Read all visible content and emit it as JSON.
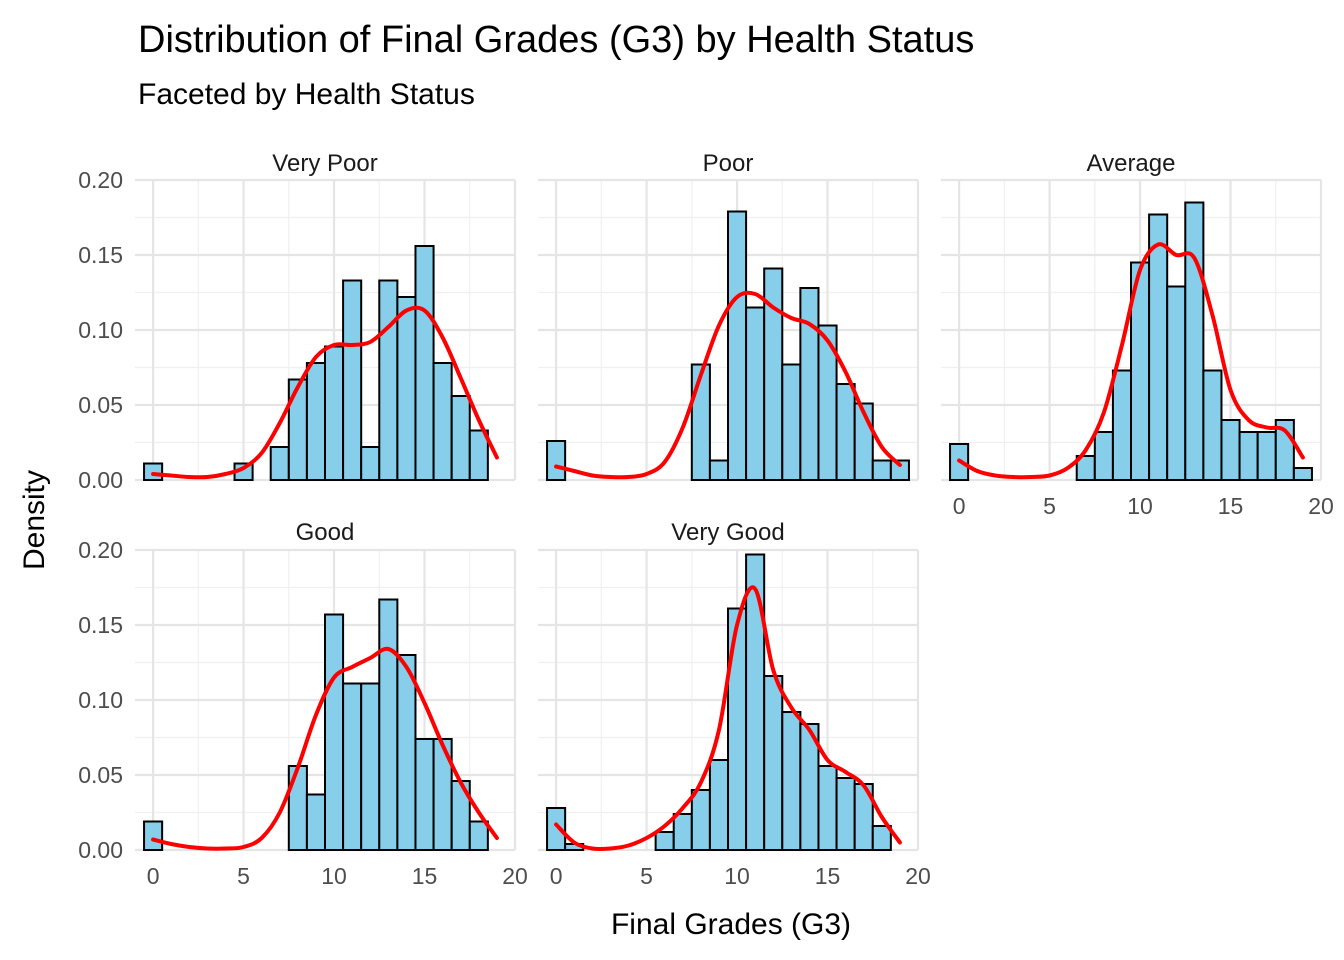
{
  "chart_data": {
    "type": "bar",
    "title": "Distribution of Final Grades (G3) by Health Status",
    "subtitle": "Faceted by Health Status",
    "xlabel": "Final Grades (G3)",
    "ylabel": "Density",
    "xlim": [
      -1,
      20
    ],
    "ylim": [
      0,
      0.2
    ],
    "x_ticks": [
      "0",
      "5",
      "10",
      "15",
      "20"
    ],
    "y_ticks": [
      "0.00",
      "0.05",
      "0.10",
      "0.15",
      "0.20"
    ],
    "bin_width": 1,
    "bin_centers": [
      0,
      1,
      2,
      3,
      4,
      5,
      6,
      7,
      8,
      9,
      10,
      11,
      12,
      13,
      14,
      15,
      16,
      17,
      18,
      19
    ],
    "grid": true,
    "bar_fill": "#87CEEB",
    "density_color": "#FF0000",
    "facets": [
      {
        "name": "Very Poor",
        "values": [
          0.011,
          0,
          0,
          0,
          0,
          0.011,
          0,
          0.022,
          0.067,
          0.078,
          0.089,
          0.133,
          0.022,
          0.133,
          0.122,
          0.156,
          0.078,
          0.056,
          0.033,
          0
        ],
        "density": [
          [
            0,
            0.004
          ],
          [
            1,
            0.003
          ],
          [
            2,
            0.002
          ],
          [
            3,
            0.002
          ],
          [
            4,
            0.004
          ],
          [
            5,
            0.008
          ],
          [
            6,
            0.018
          ],
          [
            7,
            0.038
          ],
          [
            8,
            0.062
          ],
          [
            9,
            0.082
          ],
          [
            10,
            0.09
          ],
          [
            11,
            0.09
          ],
          [
            12,
            0.092
          ],
          [
            13,
            0.102
          ],
          [
            14,
            0.113
          ],
          [
            15,
            0.113
          ],
          [
            16,
            0.095
          ],
          [
            17,
            0.068
          ],
          [
            18,
            0.04
          ],
          [
            19,
            0.015
          ]
        ]
      },
      {
        "name": "Poor",
        "values": [
          0.026,
          0,
          0,
          0,
          0,
          0,
          0,
          0,
          0.077,
          0.013,
          0.179,
          0.115,
          0.141,
          0.077,
          0.128,
          0.103,
          0.064,
          0.051,
          0.013,
          0.013
        ],
        "density": [
          [
            0,
            0.009
          ],
          [
            1,
            0.006
          ],
          [
            2,
            0.003
          ],
          [
            3,
            0.002
          ],
          [
            4,
            0.002
          ],
          [
            5,
            0.004
          ],
          [
            6,
            0.012
          ],
          [
            7,
            0.035
          ],
          [
            8,
            0.07
          ],
          [
            9,
            0.103
          ],
          [
            10,
            0.122
          ],
          [
            11,
            0.124
          ],
          [
            12,
            0.115
          ],
          [
            13,
            0.108
          ],
          [
            14,
            0.104
          ],
          [
            15,
            0.093
          ],
          [
            16,
            0.072
          ],
          [
            17,
            0.045
          ],
          [
            18,
            0.022
          ],
          [
            19,
            0.01
          ]
        ]
      },
      {
        "name": "Average",
        "values": [
          0.024,
          0,
          0,
          0,
          0,
          0,
          0,
          0.016,
          0.032,
          0.073,
          0.145,
          0.177,
          0.129,
          0.185,
          0.073,
          0.04,
          0.032,
          0.032,
          0.04,
          0.008
        ],
        "density": [
          [
            0,
            0.013
          ],
          [
            1,
            0.006
          ],
          [
            2,
            0.003
          ],
          [
            3,
            0.002
          ],
          [
            4,
            0.002
          ],
          [
            5,
            0.003
          ],
          [
            6,
            0.008
          ],
          [
            7,
            0.02
          ],
          [
            8,
            0.045
          ],
          [
            9,
            0.09
          ],
          [
            10,
            0.14
          ],
          [
            11,
            0.157
          ],
          [
            12,
            0.15
          ],
          [
            13,
            0.148
          ],
          [
            14,
            0.11
          ],
          [
            15,
            0.06
          ],
          [
            16,
            0.04
          ],
          [
            17,
            0.035
          ],
          [
            18,
            0.033
          ],
          [
            19,
            0.015
          ]
        ]
      },
      {
        "name": "Good",
        "values": [
          0.019,
          0,
          0,
          0,
          0,
          0,
          0,
          0,
          0.056,
          0.037,
          0.157,
          0.111,
          0.111,
          0.167,
          0.13,
          0.074,
          0.074,
          0.046,
          0.019,
          0
        ],
        "density": [
          [
            0,
            0.007
          ],
          [
            1,
            0.004
          ],
          [
            2,
            0.002
          ],
          [
            3,
            0.001
          ],
          [
            4,
            0.001
          ],
          [
            5,
            0.002
          ],
          [
            6,
            0.008
          ],
          [
            7,
            0.025
          ],
          [
            8,
            0.055
          ],
          [
            9,
            0.09
          ],
          [
            10,
            0.115
          ],
          [
            11,
            0.122
          ],
          [
            12,
            0.128
          ],
          [
            13,
            0.134
          ],
          [
            14,
            0.122
          ],
          [
            15,
            0.098
          ],
          [
            16,
            0.07
          ],
          [
            17,
            0.045
          ],
          [
            18,
            0.025
          ],
          [
            19,
            0.008
          ]
        ]
      },
      {
        "name": "Very Good",
        "values": [
          0.028,
          0.004,
          0,
          0,
          0,
          0,
          0.012,
          0.024,
          0.04,
          0.06,
          0.161,
          0.197,
          0.116,
          0.092,
          0.084,
          0.056,
          0.048,
          0.044,
          0.016,
          0
        ],
        "density": [
          [
            0,
            0.017
          ],
          [
            1,
            0.005
          ],
          [
            2,
            0.001
          ],
          [
            3,
            0.001
          ],
          [
            4,
            0.003
          ],
          [
            5,
            0.008
          ],
          [
            6,
            0.016
          ],
          [
            7,
            0.028
          ],
          [
            8,
            0.045
          ],
          [
            9,
            0.08
          ],
          [
            10,
            0.15
          ],
          [
            11,
            0.174
          ],
          [
            12,
            0.12
          ],
          [
            13,
            0.095
          ],
          [
            14,
            0.08
          ],
          [
            15,
            0.06
          ],
          [
            16,
            0.052
          ],
          [
            17,
            0.043
          ],
          [
            18,
            0.022
          ],
          [
            19,
            0.005
          ]
        ]
      }
    ]
  }
}
